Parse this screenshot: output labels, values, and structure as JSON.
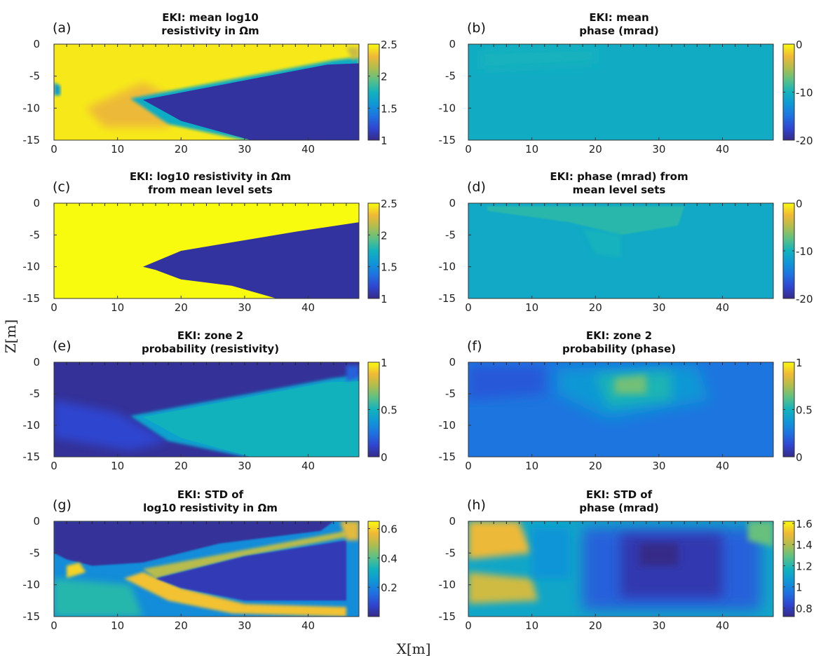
{
  "figure": {
    "xlabel": "X[m]",
    "ylabel": "Z[m]"
  },
  "colors": {
    "colormap": "parula",
    "stops": [
      "#352a87",
      "#2f46d2",
      "#1e72e0",
      "#0f97d6",
      "#12b2bd",
      "#5bc186",
      "#aebd4f",
      "#f1b936",
      "#f9fb0e"
    ]
  },
  "chart_data": [
    {
      "id": "a",
      "label": "(a)",
      "type": "heatmap",
      "title": [
        "EKI: mean log10",
        "resistivity in Ωm"
      ],
      "xlim": [
        0,
        48
      ],
      "ylim": [
        -15,
        0
      ],
      "xticks": [
        0,
        10,
        20,
        30,
        40
      ],
      "yticks": [
        0,
        -5,
        -10,
        -15
      ],
      "clim": [
        1,
        2.5
      ],
      "cticks": [
        "2.5",
        "2",
        "1.5",
        "1"
      ],
      "ctick_values": [
        2.5,
        2,
        1.5,
        1
      ],
      "background": 2.45,
      "regions": [
        {
          "value": 2.3,
          "blur": 6,
          "points": [
            [
              5,
              -10
            ],
            [
              14,
              -6
            ],
            [
              20,
              -9
            ],
            [
              18,
              -13
            ],
            [
              8,
              -13
            ]
          ]
        },
        {
          "value": 1.7,
          "blur": 2,
          "points": [
            [
              12,
              -8.5
            ],
            [
              44,
              -2.5
            ],
            [
              48,
              -2
            ],
            [
              48,
              -15
            ],
            [
              30,
              -15
            ],
            [
              18,
              -12.5
            ]
          ]
        },
        {
          "value": 1.06,
          "blur": 0,
          "points": [
            [
              14,
              -8.7
            ],
            [
              43,
              -3.2
            ],
            [
              48,
              -3
            ],
            [
              48,
              -15
            ],
            [
              31,
              -15
            ],
            [
              20,
              -12
            ]
          ]
        },
        {
          "value": 1.6,
          "blur": 2,
          "points": [
            [
              0,
              -6
            ],
            [
              1,
              -6.5
            ],
            [
              1,
              -8
            ],
            [
              0,
              -8
            ]
          ]
        },
        {
          "value": 2.2,
          "blur": 3,
          "points": [
            [
              46,
              -0.5
            ],
            [
              48,
              -0.5
            ],
            [
              48,
              -2
            ],
            [
              47,
              -2.5
            ]
          ]
        }
      ]
    },
    {
      "id": "b",
      "label": "(b)",
      "type": "heatmap",
      "title": [
        "EKI: mean",
        "phase (mrad)"
      ],
      "xlim": [
        0,
        48
      ],
      "ylim": [
        -15,
        0
      ],
      "xticks": [
        0,
        10,
        20,
        30,
        40
      ],
      "yticks": [
        0,
        -5,
        -10,
        -15
      ],
      "clim": [
        -20,
        0
      ],
      "cticks": [
        "0",
        "-10",
        "-20"
      ],
      "ctick_values": [
        0,
        -10,
        -20
      ],
      "background": -10.6,
      "regions": [
        {
          "value": -10.0,
          "blur": 8,
          "points": [
            [
              2,
              -1
            ],
            [
              20,
              -0.5
            ],
            [
              20,
              -3
            ],
            [
              2,
              -4
            ]
          ]
        }
      ]
    },
    {
      "id": "c",
      "label": "(c)",
      "type": "heatmap",
      "title": [
        "EKI: log10 resistivity in Ωm",
        "from mean level sets"
      ],
      "xlim": [
        0,
        48
      ],
      "ylim": [
        -15,
        0
      ],
      "xticks": [
        0,
        10,
        20,
        30,
        40
      ],
      "yticks": [
        0,
        -5,
        -10,
        -15
      ],
      "clim": [
        1,
        2.5
      ],
      "cticks": [
        "2.5",
        "2",
        "1.5",
        "1"
      ],
      "ctick_values": [
        2.5,
        2,
        1.5,
        1
      ],
      "background": 2.5,
      "regions": [
        {
          "value": 1.06,
          "blur": 0,
          "points": [
            [
              14,
              -10
            ],
            [
              20,
              -7.5
            ],
            [
              26,
              -6.5
            ],
            [
              38,
              -4.5
            ],
            [
              48,
              -3
            ],
            [
              48,
              -15
            ],
            [
              35,
              -15
            ],
            [
              28,
              -13
            ],
            [
              20,
              -12
            ],
            [
              16,
              -10.5
            ]
          ]
        }
      ]
    },
    {
      "id": "d",
      "label": "(d)",
      "type": "heatmap",
      "title": [
        "EKI: phase (mrad) from",
        "mean level sets"
      ],
      "xlim": [
        0,
        48
      ],
      "ylim": [
        -15,
        0
      ],
      "xticks": [
        0,
        10,
        20,
        30,
        40
      ],
      "yticks": [
        0,
        -5,
        -10,
        -15
      ],
      "clim": [
        -20,
        0
      ],
      "cticks": [
        "0",
        "-10",
        "-20"
      ],
      "ctick_values": [
        0,
        -10,
        -20
      ],
      "background": -10.8,
      "regions": [
        {
          "value": -9.2,
          "blur": 1,
          "points": [
            [
              3,
              -0.5
            ],
            [
              34,
              -0.5
            ],
            [
              33,
              -3.5
            ],
            [
              24,
              -5
            ],
            [
              16,
              -3
            ],
            [
              3,
              -1.2
            ]
          ]
        },
        {
          "value": -10.0,
          "blur": 3,
          "points": [
            [
              18,
              -4
            ],
            [
              24,
              -5
            ],
            [
              24,
              -8.5
            ],
            [
              20,
              -8
            ]
          ]
        }
      ]
    },
    {
      "id": "e",
      "label": "(e)",
      "type": "heatmap",
      "title": [
        "EKI: zone 2",
        "probability (resistivity)"
      ],
      "xlim": [
        0,
        48
      ],
      "ylim": [
        -15,
        0
      ],
      "xticks": [
        0,
        10,
        20,
        30,
        40
      ],
      "yticks": [
        0,
        -5,
        -10,
        -15
      ],
      "clim": [
        0,
        1
      ],
      "cticks": [
        "1",
        "0.5",
        "0"
      ],
      "ctick_values": [
        1,
        0.5,
        0
      ],
      "background": 0.03,
      "regions": [
        {
          "value": 0.12,
          "blur": 6,
          "points": [
            [
              0,
              -6
            ],
            [
              10,
              -8
            ],
            [
              18,
              -12.5
            ],
            [
              12,
              -14
            ],
            [
              0,
              -12
            ]
          ]
        },
        {
          "value": 0.42,
          "blur": 2,
          "points": [
            [
              12,
              -8.5
            ],
            [
              44,
              -2.5
            ],
            [
              48,
              -2
            ],
            [
              48,
              -15
            ],
            [
              30,
              -15
            ],
            [
              18,
              -12.5
            ]
          ]
        },
        {
          "value": 0.5,
          "blur": 0,
          "points": [
            [
              14,
              -8.7
            ],
            [
              43,
              -3.2
            ],
            [
              48,
              -3
            ],
            [
              48,
              -15
            ],
            [
              31,
              -15
            ],
            [
              20,
              -12
            ]
          ]
        },
        {
          "value": 0.2,
          "blur": 3,
          "points": [
            [
              46,
              -0.5
            ],
            [
              48,
              -0.5
            ],
            [
              48,
              -2.5
            ],
            [
              46,
              -3
            ]
          ]
        }
      ]
    },
    {
      "id": "f",
      "label": "(f)",
      "type": "heatmap",
      "title": [
        "EKI: zone 2",
        "probability (phase)"
      ],
      "xlim": [
        0,
        48
      ],
      "ylim": [
        -15,
        0
      ],
      "xticks": [
        0,
        10,
        20,
        30,
        40
      ],
      "yticks": [
        0,
        -5,
        -10,
        -15
      ],
      "clim": [
        0,
        1
      ],
      "cticks": [
        "1",
        "0.5",
        "0"
      ],
      "ctick_values": [
        1,
        0.5,
        0
      ],
      "background": 0.26,
      "regions": [
        {
          "value": 0.38,
          "blur": 10,
          "points": [
            [
              14,
              -1
            ],
            [
              36,
              -0.5
            ],
            [
              38,
              -6
            ],
            [
              22,
              -9
            ],
            [
              14,
              -5
            ]
          ]
        },
        {
          "value": 0.52,
          "blur": 8,
          "points": [
            [
              20,
              -2
            ],
            [
              32,
              -1.5
            ],
            [
              32,
              -6
            ],
            [
              22,
              -7
            ]
          ]
        },
        {
          "value": 0.66,
          "blur": 5,
          "points": [
            [
              23,
              -2.5
            ],
            [
              28,
              -2
            ],
            [
              28,
              -5
            ],
            [
              23,
              -5
            ]
          ]
        },
        {
          "value": 0.18,
          "blur": 8,
          "points": [
            [
              0,
              -0.5
            ],
            [
              12,
              -0.5
            ],
            [
              12,
              -5
            ],
            [
              0,
              -6
            ]
          ]
        }
      ]
    },
    {
      "id": "g",
      "label": "(g)",
      "type": "heatmap",
      "title": [
        "EKI: STD of",
        "log10 resistivity in Ωm"
      ],
      "xlim": [
        0,
        48
      ],
      "ylim": [
        -15,
        0
      ],
      "xticks": [
        0,
        10,
        20,
        30,
        40
      ],
      "yticks": [
        0,
        -5,
        -10,
        -15
      ],
      "clim": [
        0,
        0.65
      ],
      "cticks": [
        "0.6",
        "0.4",
        "0.2"
      ],
      "ctick_values": [
        0.6,
        0.4,
        0.2
      ],
      "background": 0.22,
      "regions": [
        {
          "value": 0.02,
          "blur": 1,
          "points": [
            [
              0,
              0
            ],
            [
              44,
              0
            ],
            [
              42,
              -1.5
            ],
            [
              26,
              -3.5
            ],
            [
              14,
              -6.5
            ],
            [
              6,
              -7
            ],
            [
              2,
              -6
            ],
            [
              0,
              -5
            ]
          ]
        },
        {
          "value": 0.6,
          "blur": 2,
          "points": [
            [
              2,
              -7
            ],
            [
              4,
              -6.5
            ],
            [
              5,
              -8
            ],
            [
              2,
              -9
            ]
          ]
        },
        {
          "value": 0.58,
          "blur": 2,
          "points": [
            [
              11,
              -9
            ],
            [
              14,
              -8
            ],
            [
              20,
              -10.5
            ],
            [
              30,
              -13
            ],
            [
              46,
              -13.5
            ],
            [
              46,
              -15
            ],
            [
              28,
              -14.5
            ],
            [
              18,
              -12.5
            ]
          ]
        },
        {
          "value": 0.5,
          "blur": 2,
          "points": [
            [
              14,
              -7.5
            ],
            [
              30,
              -4.5
            ],
            [
              46,
              -1.5
            ],
            [
              46,
              -2.5
            ],
            [
              30,
              -5.5
            ],
            [
              16,
              -9
            ]
          ]
        },
        {
          "value": 0.05,
          "blur": 1,
          "points": [
            [
              16,
              -9
            ],
            [
              30,
              -5.5
            ],
            [
              46,
              -3
            ],
            [
              46,
              -12.5
            ],
            [
              30,
              -12.5
            ],
            [
              20,
              -10.5
            ]
          ]
        },
        {
          "value": 0.55,
          "blur": 3,
          "points": [
            [
              45,
              0
            ],
            [
              48,
              0
            ],
            [
              48,
              -3
            ],
            [
              46,
              -3
            ]
          ]
        },
        {
          "value": 0.35,
          "blur": 5,
          "points": [
            [
              0,
              -9
            ],
            [
              12,
              -10
            ],
            [
              14,
              -15
            ],
            [
              0,
              -15
            ]
          ]
        }
      ]
    },
    {
      "id": "h",
      "label": "(h)",
      "type": "heatmap",
      "title": [
        "EKI: STD of",
        "phase (mrad)"
      ],
      "xlim": [
        0,
        48
      ],
      "ylim": [
        -15,
        0
      ],
      "xticks": [
        0,
        10,
        20,
        30,
        40
      ],
      "yticks": [
        0,
        -5,
        -10,
        -15
      ],
      "clim": [
        0.72,
        1.62
      ],
      "cticks": [
        "1.6",
        "1.4",
        "1.2",
        "1",
        "0.8"
      ],
      "ctick_values": [
        1.6,
        1.4,
        1.2,
        1.0,
        0.8
      ],
      "background": 1.12,
      "regions": [
        {
          "value": 0.9,
          "blur": 10,
          "points": [
            [
              18,
              -1
            ],
            [
              46,
              -1
            ],
            [
              46,
              -14
            ],
            [
              18,
              -14
            ]
          ]
        },
        {
          "value": 0.78,
          "blur": 8,
          "points": [
            [
              24,
              -2
            ],
            [
              40,
              -2
            ],
            [
              40,
              -12
            ],
            [
              24,
              -12
            ]
          ]
        },
        {
          "value": 0.72,
          "blur": 5,
          "points": [
            [
              27,
              -3.5
            ],
            [
              33,
              -3.5
            ],
            [
              33,
              -7
            ],
            [
              27,
              -7
            ]
          ]
        },
        {
          "value": 1.5,
          "blur": 5,
          "points": [
            [
              0,
              0
            ],
            [
              8,
              0
            ],
            [
              10,
              -5
            ],
            [
              0,
              -6
            ]
          ]
        },
        {
          "value": 1.45,
          "blur": 5,
          "points": [
            [
              0,
              -8
            ],
            [
              10,
              -9
            ],
            [
              11,
              -12.5
            ],
            [
              0,
              -13
            ]
          ]
        },
        {
          "value": 1.05,
          "blur": 5,
          "points": [
            [
              10,
              -1
            ],
            [
              16,
              -1
            ],
            [
              16,
              -9
            ],
            [
              10,
              -9
            ]
          ]
        },
        {
          "value": 1.3,
          "blur": 4,
          "points": [
            [
              44,
              0
            ],
            [
              48,
              0
            ],
            [
              48,
              -4
            ],
            [
              44,
              -3
            ]
          ]
        }
      ]
    }
  ]
}
